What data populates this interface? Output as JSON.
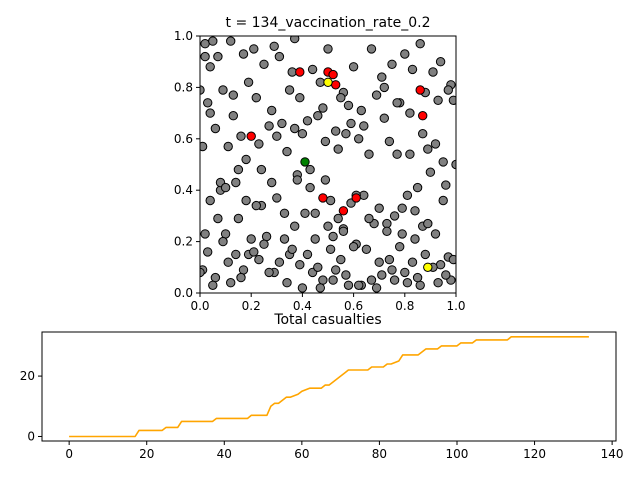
{
  "chart_data": [
    {
      "type": "scatter",
      "title": "t = 134_vaccination_rate_0.2",
      "xlabel": "",
      "ylabel": "",
      "xlim": [
        0.0,
        1.0
      ],
      "ylim": [
        0.0,
        1.0
      ],
      "x_ticks": [
        "0.0",
        "0.2",
        "0.4",
        "0.6",
        "0.8",
        "1.0"
      ],
      "y_ticks": [
        "0.0",
        "0.2",
        "0.4",
        "0.6",
        "0.8",
        "1.0"
      ],
      "colors": {
        "susceptible": "#808080",
        "infected": "#ff0000",
        "vaccinated": "#ffff00",
        "recovered": "#008000",
        "edge": "#000000"
      },
      "series": [
        {
          "name": "susceptible",
          "x": [
            0.02,
            0.05,
            0.07,
            0.04,
            0.12,
            0.17,
            0.21,
            0.25,
            0.29,
            0.31,
            0.36,
            0.37,
            0.44,
            0.47,
            0.5,
            0.56,
            0.6,
            0.67,
            0.71,
            0.75,
            0.8,
            0.86,
            0.91,
            0.94,
            0.98,
            0.0,
            0.03,
            0.09,
            0.13,
            0.19,
            0.22,
            0.28,
            0.35,
            0.39,
            0.42,
            0.48,
            0.55,
            0.58,
            0.63,
            0.69,
            0.72,
            0.78,
            0.83,
            0.88,
            0.93,
            0.99,
            0.01,
            0.06,
            0.11,
            0.16,
            0.23,
            0.27,
            0.32,
            0.4,
            0.46,
            0.53,
            0.57,
            0.62,
            0.66,
            0.74,
            0.77,
            0.82,
            0.89,
            0.95,
            1.0,
            0.04,
            0.08,
            0.14,
            0.18,
            0.24,
            0.3,
            0.34,
            0.38,
            0.43,
            0.49,
            0.51,
            0.54,
            0.59,
            0.64,
            0.7,
            0.76,
            0.81,
            0.85,
            0.9,
            0.96,
            0.02,
            0.07,
            0.1,
            0.15,
            0.2,
            0.26,
            0.33,
            0.37,
            0.41,
            0.45,
            0.52,
            0.56,
            0.61,
            0.68,
            0.73,
            0.79,
            0.84,
            0.87,
            0.92,
            0.97,
            0.01,
            0.06,
            0.12,
            0.17,
            0.23,
            0.29,
            0.35,
            0.39,
            0.44,
            0.48,
            0.53,
            0.58,
            0.63,
            0.67,
            0.71,
            0.76,
            0.8,
            0.86,
            0.93,
            0.98,
            0.03,
            0.09,
            0.14,
            0.19,
            0.25,
            0.31,
            0.36,
            0.42,
            0.47,
            0.51,
            0.55,
            0.6,
            0.65,
            0.7,
            0.74,
            0.78,
            0.83,
            0.88,
            0.94,
            0.99,
            0.0,
            0.05,
            0.11,
            0.16,
            0.21,
            0.27,
            0.34,
            0.4,
            0.46,
            0.52,
            0.57,
            0.62,
            0.69,
            0.75,
            0.81,
            0.85,
            0.91,
            0.96,
            0.02,
            0.08,
            0.13,
            0.18,
            0.24,
            0.3,
            0.37,
            0.43,
            0.49,
            0.54,
            0.59,
            0.64,
            0.72,
            0.77,
            0.82,
            0.87,
            0.92,
            0.97,
            0.04,
            0.1,
            0.15,
            0.22,
            0.28,
            0.33,
            0.38,
            0.45,
            0.5,
            0.56,
            0.61,
            0.66,
            0.73,
            0.79,
            0.84,
            0.89,
            0.95
          ],
          "y": [
            0.97,
            0.98,
            0.92,
            0.88,
            0.98,
            0.93,
            0.95,
            0.89,
            0.96,
            0.92,
            0.86,
            0.99,
            0.87,
            0.82,
            0.95,
            0.78,
            0.88,
            0.95,
            0.84,
            0.89,
            0.93,
            0.97,
            0.86,
            0.9,
            0.81,
            0.79,
            0.74,
            0.79,
            0.77,
            0.82,
            0.76,
            0.71,
            0.79,
            0.76,
            0.67,
            0.72,
            0.76,
            0.73,
            0.71,
            0.77,
            0.8,
            0.74,
            0.87,
            0.78,
            0.75,
            0.75,
            0.57,
            0.64,
            0.57,
            0.61,
            0.58,
            0.65,
            0.66,
            0.62,
            0.69,
            0.63,
            0.62,
            0.6,
            0.54,
            0.59,
            0.54,
            0.54,
            0.56,
            0.51,
            0.5,
            0.36,
            0.4,
            0.43,
            0.36,
            0.34,
            0.37,
            0.55,
            0.46,
            0.41,
            0.44,
            0.36,
            0.29,
            0.35,
            0.38,
            0.33,
            0.3,
            0.38,
            0.41,
            0.47,
            0.42,
            0.23,
            0.29,
            0.23,
            0.29,
            0.21,
            0.22,
            0.21,
            0.26,
            0.31,
            0.21,
            0.22,
            0.25,
            0.19,
            0.27,
            0.27,
            0.23,
            0.21,
            0.26,
            0.23,
            0.14,
            0.09,
            0.06,
            0.04,
            0.09,
            0.13,
            0.08,
            0.15,
            0.11,
            0.08,
            0.05,
            0.09,
            0.03,
            0.03,
            0.05,
            0.07,
            0.05,
            0.08,
            0.03,
            0.04,
            0.05,
            0.16,
            0.2,
            0.15,
            0.15,
            0.19,
            0.12,
            0.17,
            0.15,
            0.02,
            0.17,
            0.13,
            0.18,
            0.17,
            0.12,
            0.13,
            0.18,
            0.12,
            0.15,
            0.11,
            0.13,
            0.08,
            0.03,
            0.12,
            0.06,
            0.16,
            0.08,
            0.04,
            0.02,
            0.1,
            0.05,
            0.07,
            0.03,
            0.02,
            0.09,
            0.04,
            0.06,
            0.1,
            0.07,
            0.92,
            0.43,
            0.69,
            0.52,
            0.48,
            0.61,
            0.64,
            0.48,
            0.59,
            0.56,
            0.66,
            0.65,
            0.68,
            0.74,
            0.7,
            0.62,
            0.58,
            0.79,
            0.7,
            0.41,
            0.48,
            0.34,
            0.43,
            0.31,
            0.44,
            0.31,
            0.26,
            0.24,
            0.38,
            0.29,
            0.24,
            0.33,
            0.32,
            0.27,
            0.36
          ]
        },
        {
          "name": "infected",
          "x": [
            0.39,
            0.5,
            0.52,
            0.53,
            0.2,
            0.48,
            0.61,
            0.56,
            0.86,
            0.87
          ],
          "y": [
            0.86,
            0.86,
            0.85,
            0.81,
            0.61,
            0.37,
            0.37,
            0.32,
            0.79,
            0.69
          ]
        },
        {
          "name": "vaccinated",
          "x": [
            0.5,
            0.89
          ],
          "y": [
            0.82,
            0.1
          ]
        },
        {
          "name": "recovered",
          "x": [
            0.41
          ],
          "y": [
            0.51
          ]
        }
      ]
    },
    {
      "type": "line",
      "title": "Total casualties",
      "xlabel": "",
      "ylabel": "",
      "xlim": [
        -7,
        141
      ],
      "ylim": [
        -1.5,
        34.6
      ],
      "x_ticks": [
        "0",
        "20",
        "40",
        "60",
        "80",
        "100",
        "120",
        "140"
      ],
      "y_ticks": [
        "0",
        "20"
      ],
      "color": "#ffa500",
      "series": [
        {
          "name": "casualties",
          "x": [
            0,
            17,
            18,
            21,
            22,
            24,
            25,
            28,
            29,
            31,
            32,
            37,
            38,
            42,
            43,
            46,
            47,
            51,
            52,
            53,
            54,
            56,
            57,
            59,
            60,
            62,
            63,
            65,
            66,
            67,
            68,
            70,
            71,
            72,
            73,
            77,
            78,
            80,
            81,
            82,
            83,
            85,
            86,
            89,
            90,
            91,
            92,
            95,
            96,
            97,
            98,
            100,
            101,
            104,
            105,
            113,
            114,
            134
          ],
          "y": [
            0,
            0,
            2,
            2,
            2,
            2,
            3,
            3,
            5,
            5,
            5,
            5,
            6,
            6,
            6,
            6,
            7,
            7,
            10,
            11,
            11,
            13,
            13,
            14,
            15,
            16,
            16,
            16,
            17,
            17,
            18,
            20,
            21,
            22,
            22,
            22,
            23,
            23,
            23,
            24,
            24,
            25,
            27,
            27,
            27,
            28,
            29,
            29,
            30,
            30,
            30,
            30,
            31,
            31,
            32,
            32,
            33,
            33
          ]
        }
      ]
    }
  ]
}
